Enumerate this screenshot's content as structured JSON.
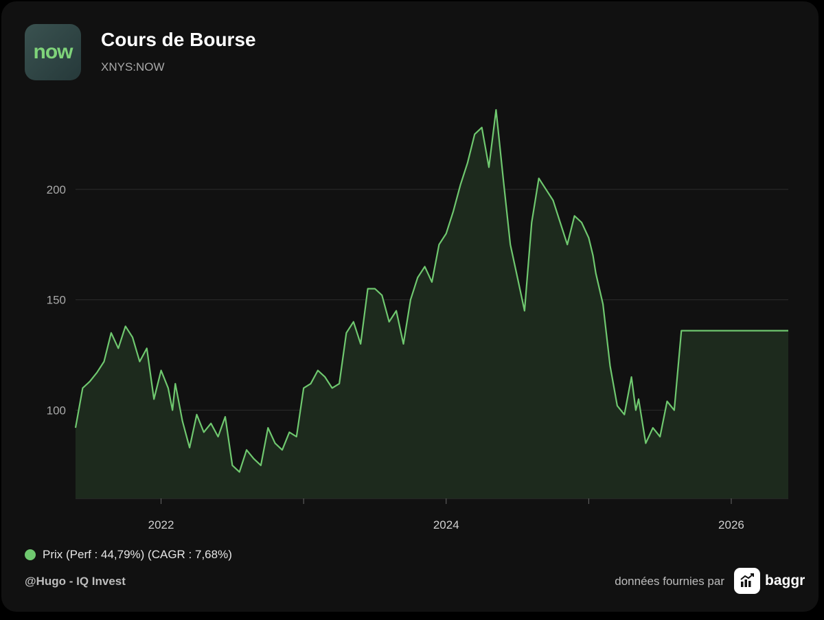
{
  "header": {
    "logo_text": "now",
    "title": "Cours de Bourse",
    "ticker": "XNYS:NOW"
  },
  "colors": {
    "line": "#6fc86f",
    "fill": "#1d2a1d",
    "grid": "#2c2c2c",
    "background": "#111111"
  },
  "chart_data": {
    "type": "area",
    "title": "",
    "xlabel": "",
    "ylabel": "",
    "y_ticks": [
      100,
      150,
      200
    ],
    "x_tick_labels": [
      "2022",
      "2024",
      "2026"
    ],
    "ylim": [
      60,
      235
    ],
    "xlim": [
      2021.4,
      2026.4
    ],
    "grid": "horizontal",
    "legend_position": "bottom-left",
    "series": [
      {
        "name": "Prix (Perf : 44,79%) (CAGR : 7,68%)",
        "x": [
          2021.4,
          2021.45,
          2021.5,
          2021.55,
          2021.6,
          2021.65,
          2021.7,
          2021.75,
          2021.8,
          2021.85,
          2021.9,
          2021.95,
          2022.0,
          2022.05,
          2022.08,
          2022.1,
          2022.15,
          2022.2,
          2022.25,
          2022.3,
          2022.35,
          2022.4,
          2022.45,
          2022.5,
          2022.55,
          2022.6,
          2022.65,
          2022.7,
          2022.75,
          2022.8,
          2022.85,
          2022.9,
          2022.95,
          2023.0,
          2023.05,
          2023.1,
          2023.15,
          2023.2,
          2023.25,
          2023.3,
          2023.35,
          2023.4,
          2023.45,
          2023.5,
          2023.55,
          2023.6,
          2023.65,
          2023.7,
          2023.75,
          2023.8,
          2023.85,
          2023.9,
          2023.95,
          2024.0,
          2024.05,
          2024.1,
          2024.15,
          2024.2,
          2024.25,
          2024.3,
          2024.35,
          2024.4,
          2024.45,
          2024.5,
          2024.55,
          2024.6,
          2024.65,
          2024.7,
          2024.75,
          2024.8,
          2024.85,
          2024.9,
          2024.95,
          2025.0,
          2025.03,
          2025.05,
          2025.1,
          2025.15,
          2025.2,
          2025.25,
          2025.3,
          2025.33,
          2025.35,
          2025.4,
          2025.45,
          2025.5,
          2025.55,
          2025.6,
          2025.65,
          2025.7,
          2025.75,
          2025.8,
          2025.85,
          2025.9,
          2025.95,
          2026.0,
          2026.05,
          2026.1,
          2026.15,
          2026.2,
          2026.25,
          2026.3,
          2026.35,
          2026.38,
          2026.4
        ],
        "y": [
          92,
          110,
          113,
          117,
          122,
          135,
          128,
          138,
          133,
          122,
          128,
          105,
          118,
          110,
          100,
          112,
          95,
          83,
          98,
          90,
          94,
          88,
          97,
          75,
          72,
          82,
          78,
          75,
          92,
          85,
          82,
          90,
          88,
          110,
          112,
          118,
          115,
          110,
          112,
          135,
          140,
          130,
          155,
          155,
          152,
          140,
          145,
          130,
          150,
          160,
          165,
          158,
          175,
          180,
          190,
          202,
          212,
          225,
          228,
          210,
          236,
          205,
          175,
          160,
          145,
          185,
          205,
          200,
          195,
          185,
          175,
          188,
          185,
          178,
          170,
          162,
          148,
          120,
          102,
          98,
          115,
          100,
          105,
          85,
          92,
          88,
          104,
          100,
          136,
          136,
          136,
          136,
          136,
          136,
          136,
          136,
          136,
          136,
          136,
          136,
          136,
          136,
          136,
          136,
          136
        ]
      }
    ]
  },
  "legend": {
    "label": "Prix (Perf : 44,79%) (CAGR : 7,68%)"
  },
  "footer": {
    "credit": "@Hugo - IQ Invest",
    "provided_by": "données fournies par",
    "brand": "baggr"
  }
}
